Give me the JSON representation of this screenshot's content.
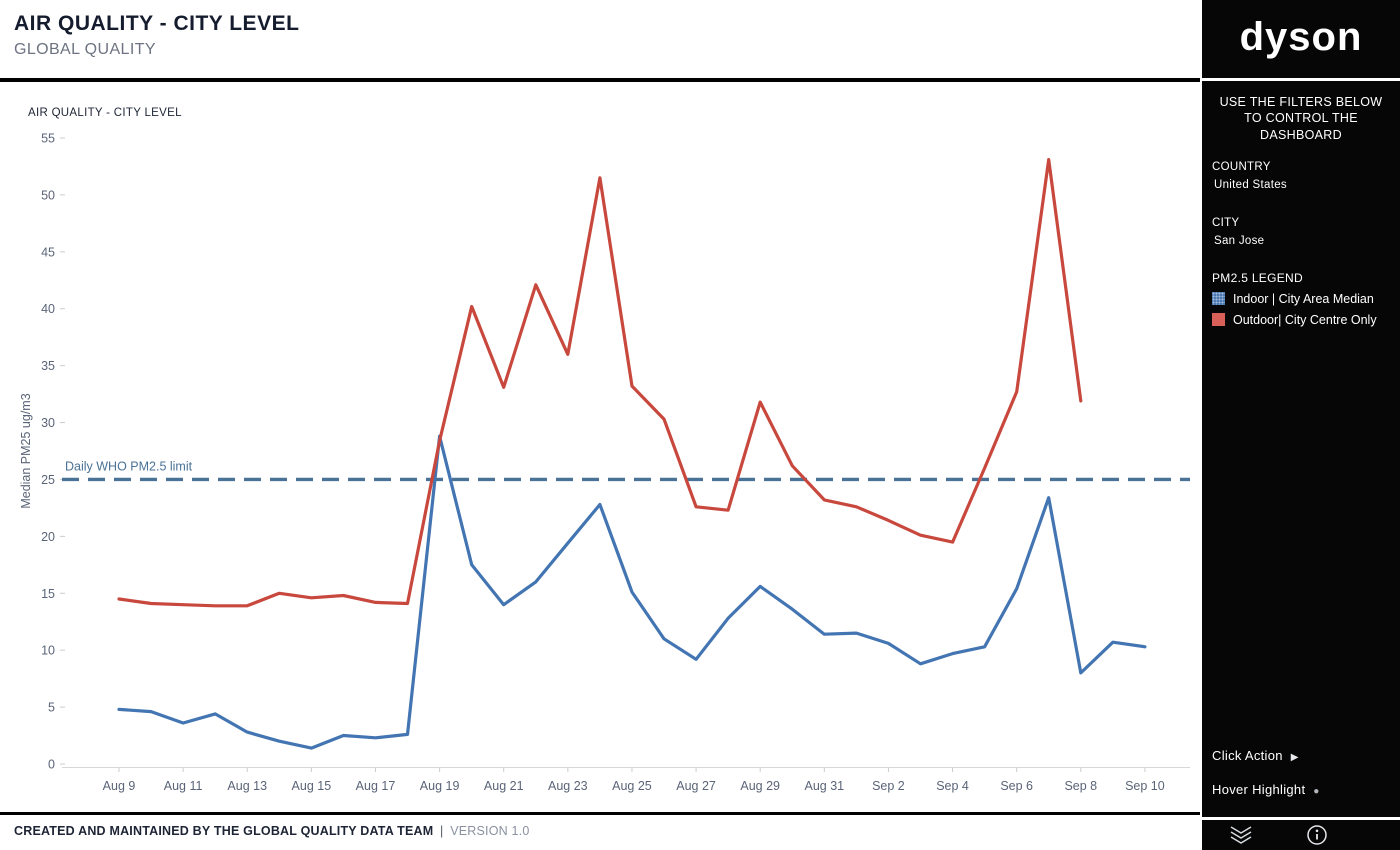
{
  "header": {
    "title": "AIR QUALITY - CITY LEVEL",
    "subtitle": "GLOBAL QUALITY"
  },
  "chart": {
    "title": "AIR QUALITY - CITY LEVEL"
  },
  "footer": {
    "credit": "CREATED AND MAINTAINED BY THE GLOBAL QUALITY DATA TEAM",
    "separator": "|",
    "version": "VERSION 1.0"
  },
  "sidebar": {
    "logo": "dyson",
    "instructions": "USE THE FILTERS BELOW TO CONTROL THE DASHBOARD",
    "filters": [
      {
        "label": "COUNTRY",
        "value": "United States"
      },
      {
        "label": "CITY",
        "value": "San Jose"
      }
    ],
    "legend": {
      "title": "PM2.5 LEGEND",
      "items": [
        {
          "label": "Indoor | City Area Median",
          "color": "#4a79b4"
        },
        {
          "label": "Outdoor| City Centre Only",
          "color": "#d96059"
        }
      ]
    },
    "actions": [
      {
        "label": "Click Action",
        "glyph": "▶"
      },
      {
        "label": "Hover Highlight",
        "glyph": "●"
      }
    ],
    "icons": [
      "double-chevron-down-icon",
      "info-icon"
    ]
  },
  "chart_data": {
    "type": "line",
    "title": "AIR QUALITY - CITY LEVEL",
    "xlabel": "",
    "ylabel": "Median PM25 ug/m3",
    "ylim": [
      0,
      55
    ],
    "ytick_step": 5,
    "grid": false,
    "legend_position": "sidebar",
    "x_label_every": 2,
    "dates": [
      "Aug 9",
      "Aug 10",
      "Aug 11",
      "Aug 12",
      "Aug 13",
      "Aug 14",
      "Aug 15",
      "Aug 16",
      "Aug 17",
      "Aug 18",
      "Aug 19",
      "Aug 20",
      "Aug 21",
      "Aug 22",
      "Aug 23",
      "Aug 24",
      "Aug 25",
      "Aug 26",
      "Aug 27",
      "Aug 28",
      "Aug 29",
      "Aug 30",
      "Aug 31",
      "Sep 1",
      "Sep 2",
      "Sep 3",
      "Sep 4",
      "Sep 5",
      "Sep 6",
      "Sep 7",
      "Sep 8",
      "Sep 9",
      "Sep 10"
    ],
    "series": [
      {
        "name": "Indoor | City Area Median",
        "svg_name": "indoor-line",
        "color": "#4375b2",
        "values": [
          4.8,
          4.6,
          3.6,
          4.4,
          2.8,
          2.0,
          1.4,
          2.5,
          2.3,
          2.6,
          28.8,
          17.5,
          14.0,
          16.0,
          19.4,
          22.8,
          15.1,
          11.0,
          9.2,
          12.8,
          15.6,
          13.6,
          11.4,
          11.5,
          10.6,
          8.8,
          9.7,
          10.3,
          15.4,
          23.4,
          8.0,
          10.7,
          10.3
        ]
      },
      {
        "name": "Outdoor| City Centre Only",
        "svg_name": "outdoor-line",
        "color": "#c8483e",
        "values": [
          14.5,
          14.1,
          14.0,
          13.9,
          13.9,
          15.0,
          14.6,
          14.8,
          14.2,
          14.1,
          28.4,
          40.2,
          33.1,
          42.1,
          36.0,
          51.5,
          33.2,
          30.3,
          22.6,
          22.3,
          31.8,
          26.2,
          23.2,
          22.6,
          21.4,
          20.1,
          19.5,
          26.0,
          32.7,
          53.1,
          31.9,
          null,
          null
        ]
      }
    ],
    "reference_line": {
      "label": "Daily WHO PM2.5 limit",
      "value": 25,
      "color": "#4a7296",
      "style": "dashed"
    }
  }
}
